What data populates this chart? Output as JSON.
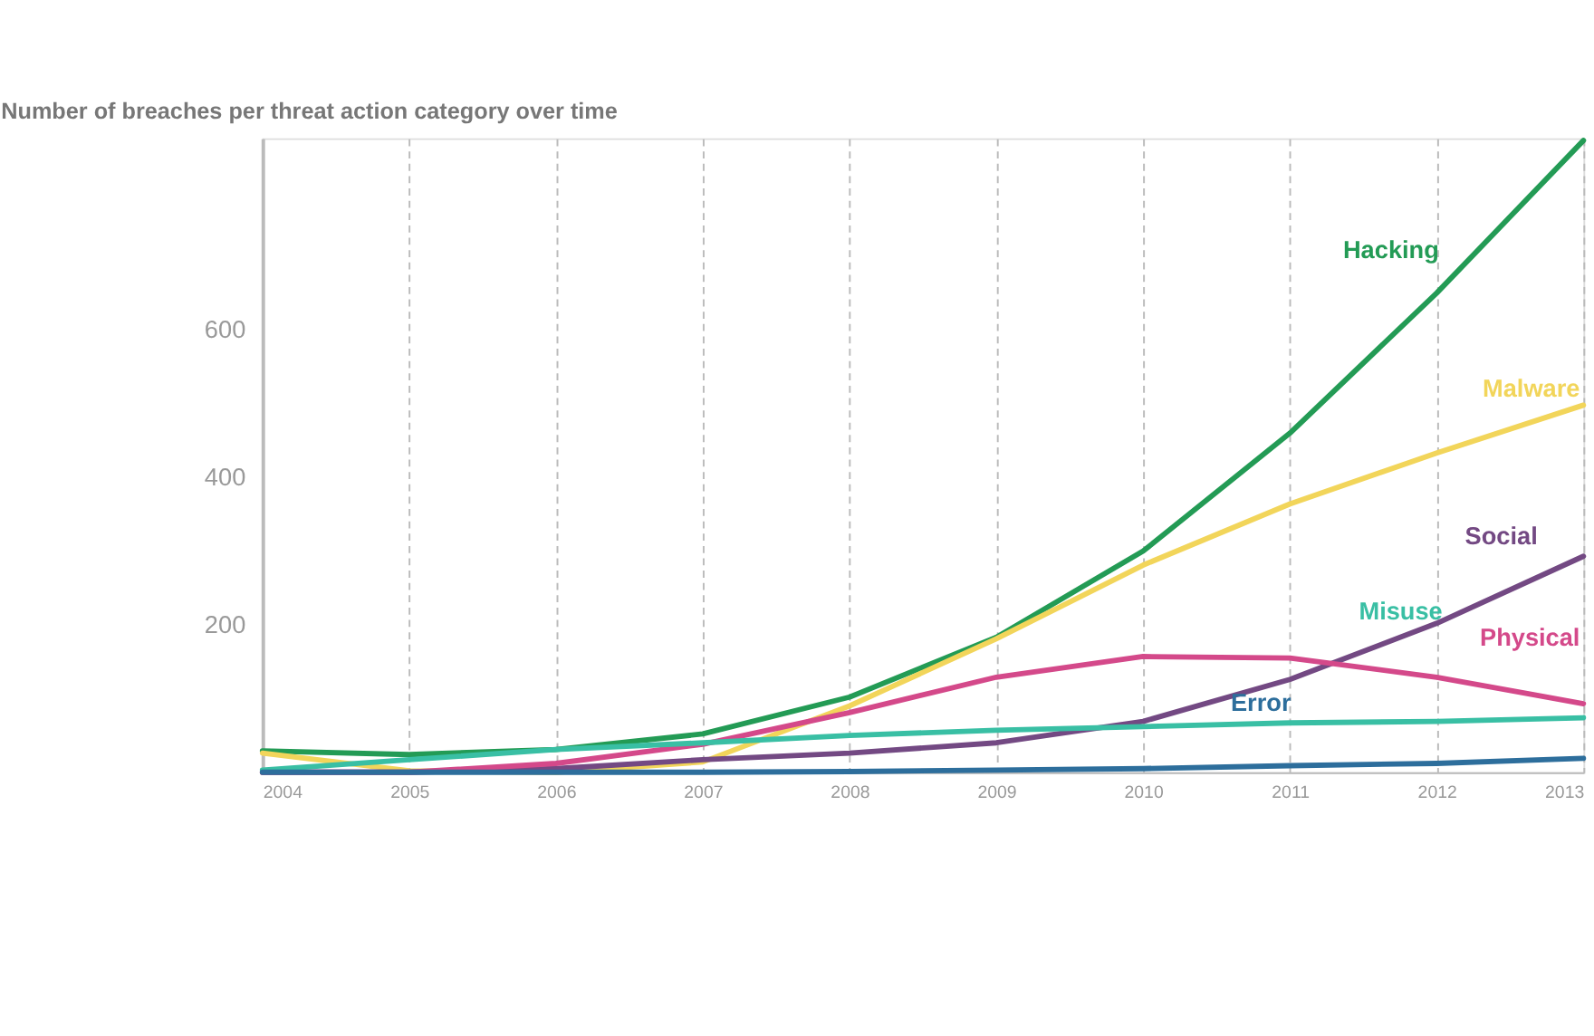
{
  "chart_data": {
    "type": "line",
    "title": "Number of breaches per threat action category over time",
    "x": [
      2004,
      2005,
      2006,
      2007,
      2008,
      2009,
      2010,
      2011,
      2012,
      2013
    ],
    "xlim": [
      2004,
      2013
    ],
    "xticks": [
      2004,
      2005,
      2006,
      2007,
      2008,
      2009,
      2010,
      2011,
      2012,
      2013
    ],
    "ylim": [
      0,
      860
    ],
    "yticks": [
      200,
      400,
      600
    ],
    "grid": "x",
    "legend": false,
    "marker": "none",
    "line_style": "solid",
    "series": [
      {
        "name": "Hacking",
        "color": "#239b55",
        "values": [
          29,
          24,
          31,
          52,
          102,
          183,
          300,
          460,
          650,
          857
        ]
      },
      {
        "name": "Malware",
        "color": "#f2d55a",
        "values": [
          26,
          2,
          0,
          14,
          90,
          181,
          281,
          364,
          433,
          498
        ]
      },
      {
        "name": "Social",
        "color": "#734983",
        "values": [
          0,
          0,
          5,
          17,
          26,
          40,
          69,
          126,
          202,
          293
        ]
      },
      {
        "name": "Physical",
        "color": "#d4498a",
        "values": [
          0,
          0,
          12,
          38,
          81,
          129,
          157,
          155,
          129,
          93
        ]
      },
      {
        "name": "Misuse",
        "color": "#39bfa4",
        "values": [
          3,
          17,
          31,
          40,
          50,
          57,
          62,
          67,
          69,
          74
        ]
      },
      {
        "name": "Error",
        "color": "#2d6e9c",
        "values": [
          0,
          0,
          0,
          0,
          1,
          3,
          5,
          9,
          12,
          19
        ]
      }
    ]
  }
}
